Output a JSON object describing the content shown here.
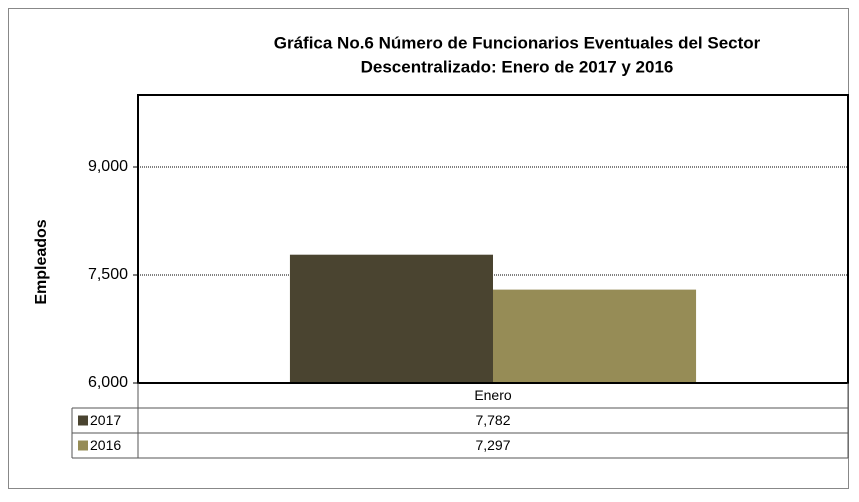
{
  "chart_data": {
    "type": "bar",
    "title": "Gráfica No.6 Número de Funcionarios Eventuales del Sector Descentralizado: Enero de 2017 y 2016",
    "title_lines": [
      "Gráfica No.6 Número de Funcionarios Eventuales del Sector",
      "Descentralizado: Enero de 2017 y 2016"
    ],
    "ylabel": "Empleados",
    "categories": [
      "Enero"
    ],
    "series": [
      {
        "name": "2017",
        "color": "#4a4430",
        "values": [
          7782
        ],
        "value_labels": [
          "7,782"
        ]
      },
      {
        "name": "2016",
        "color": "#968c56",
        "values": [
          7297
        ],
        "value_labels": [
          "7,297"
        ]
      }
    ],
    "ylim": [
      6000,
      10000
    ],
    "yticks": [
      {
        "value": 6000,
        "label": "6,000"
      },
      {
        "value": 7500,
        "label": "7,500"
      },
      {
        "value": 9000,
        "label": "9,000"
      }
    ],
    "grid": true
  }
}
